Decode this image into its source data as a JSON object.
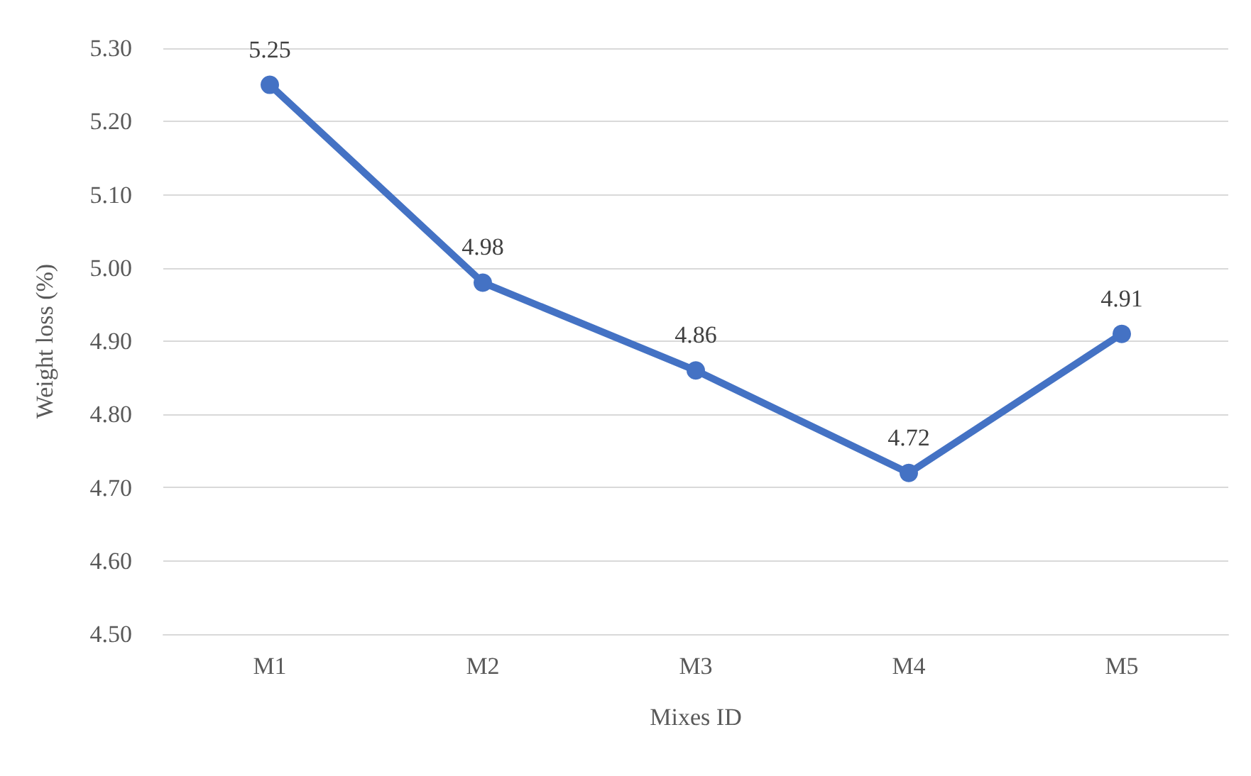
{
  "chart_data": {
    "type": "line",
    "xlabel": "Mixes ID",
    "ylabel": "Weight loss (%)",
    "categories": [
      "M1",
      "M2",
      "M3",
      "M4",
      "M5"
    ],
    "series": [
      {
        "color": "#4472c4",
        "values": [
          5.25,
          4.98,
          4.86,
          4.72,
          4.91
        ]
      }
    ],
    "ylim": [
      4.5,
      5.3
    ],
    "yticks": [
      {
        "value": 4.5,
        "label": "4.50"
      },
      {
        "value": 4.6,
        "label": "4.60"
      },
      {
        "value": 4.7,
        "label": "4.70"
      },
      {
        "value": 4.8,
        "label": "4.80"
      },
      {
        "value": 4.9,
        "label": "4.90"
      },
      {
        "value": 5.0,
        "label": "5.00"
      },
      {
        "value": 5.1,
        "label": "5.10"
      },
      {
        "value": 5.2,
        "label": "5.20"
      },
      {
        "value": 5.3,
        "label": "5.30"
      }
    ],
    "grid": "y",
    "marker": "circle",
    "line_style": "solid",
    "data_labels": true
  }
}
